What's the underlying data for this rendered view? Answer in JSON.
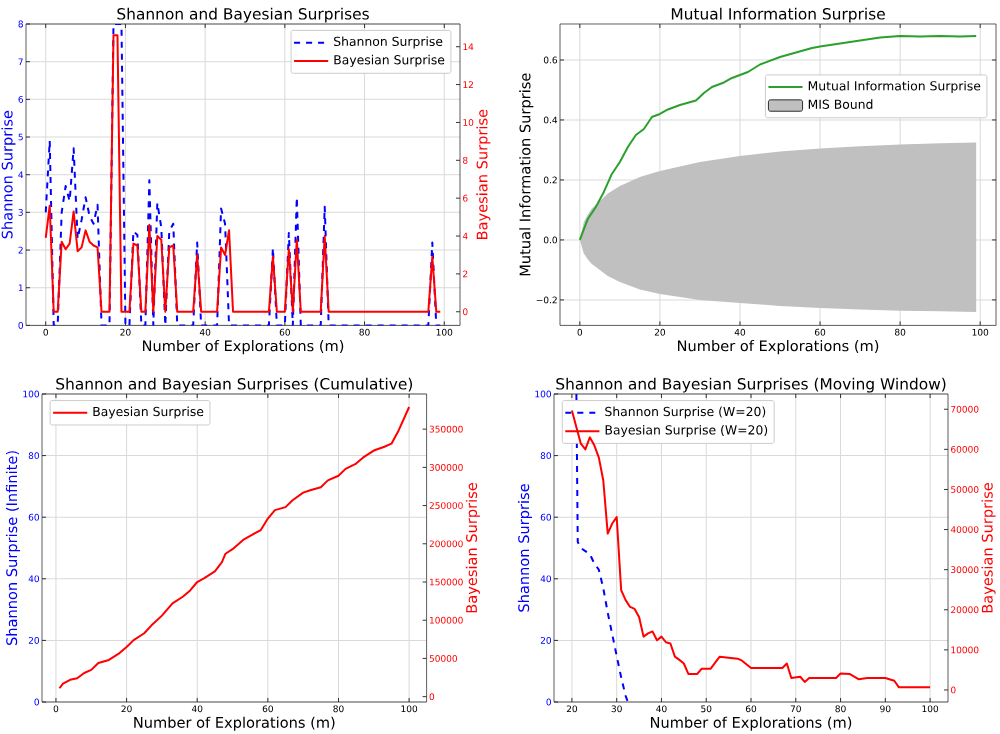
{
  "chart_data": [
    {
      "type": "line",
      "title": "Shannon and Bayesian Surprises",
      "xlabel": "Number of Explorations (m)",
      "ylabel": "Shannon Surprise",
      "y2label": "Bayesian Surprise",
      "x": [
        0,
        1,
        2,
        3,
        4,
        5,
        6,
        7,
        8,
        9,
        10,
        11,
        12,
        13,
        14,
        15,
        16,
        17,
        18,
        19,
        20,
        21,
        22,
        23,
        24,
        25,
        26,
        27,
        28,
        29,
        30,
        31,
        32,
        33,
        34,
        35,
        36,
        37,
        38,
        39,
        40,
        41,
        42,
        43,
        44,
        45,
        46,
        47,
        48,
        49,
        50,
        51,
        52,
        53,
        54,
        55,
        56,
        57,
        58,
        59,
        60,
        61,
        62,
        63,
        64,
        65,
        66,
        67,
        68,
        69,
        70,
        71,
        72,
        73,
        74,
        75,
        76,
        77,
        78,
        79,
        80,
        81,
        82,
        83,
        84,
        85,
        86,
        87,
        88,
        89,
        90,
        91,
        92,
        93,
        94,
        95,
        96,
        97,
        98,
        99
      ],
      "xlim": [
        -4.95,
        103.95
      ],
      "xticks": [
        0,
        20,
        40,
        60,
        80,
        100
      ],
      "ylim": [
        0,
        8
      ],
      "yticks": [
        0,
        1,
        2,
        3,
        4,
        5,
        6,
        7,
        8
      ],
      "y2lim": [
        -0.72,
        15.2
      ],
      "y2ticks": [
        0,
        2,
        4,
        6,
        8,
        10,
        12,
        14
      ],
      "grid": true,
      "legend": "top right",
      "series": [
        {
          "name": "Shannon Surprise",
          "color": "#0000ff",
          "line_style": "dashed",
          "axis": "y",
          "values": [
            3.0,
            4.9,
            0,
            0,
            3.0,
            3.7,
            3.3,
            4.7,
            2.3,
            2.8,
            3.4,
            2.9,
            2.7,
            3.2,
            0,
            0,
            0,
            8,
            8,
            8,
            0,
            0,
            2.5,
            2.4,
            0,
            0,
            3.85,
            0,
            3.25,
            2.6,
            0,
            2.5,
            2.7,
            0,
            0,
            0,
            0,
            0,
            2.2,
            0,
            0,
            0,
            0,
            0,
            3.1,
            2.7,
            0,
            0,
            0,
            0,
            0,
            0,
            0,
            0,
            0,
            0,
            0,
            2.05,
            0,
            0,
            0,
            2.45,
            0,
            3.4,
            0,
            0,
            0,
            0,
            0,
            0,
            3.15,
            0,
            0,
            0,
            0,
            0,
            0,
            0,
            0,
            0,
            0,
            0,
            0,
            0,
            0,
            0,
            0,
            0,
            0,
            0,
            0,
            0,
            0,
            0,
            0,
            0,
            0,
            2.2,
            0,
            0
          ]
        },
        {
          "name": "Bayesian Surprise",
          "color": "#ff0000",
          "line_style": "solid",
          "axis": "y2",
          "values": [
            3.9,
            5.6,
            0,
            0,
            3.7,
            3.3,
            3.6,
            5.3,
            3.2,
            3.4,
            4.3,
            3.7,
            3.5,
            3.4,
            0,
            0,
            0,
            14.6,
            14.6,
            0,
            0,
            0,
            3.6,
            3.5,
            0,
            0,
            4.6,
            0,
            4.0,
            3.8,
            0,
            3.4,
            3.5,
            0,
            0,
            0,
            0,
            0,
            3.0,
            0,
            0,
            0,
            0,
            0,
            3.4,
            3.0,
            4.3,
            0,
            0,
            0,
            0,
            0,
            0,
            0,
            0,
            0,
            0,
            2.9,
            0,
            0,
            0,
            3.3,
            0,
            3.8,
            0,
            0,
            0,
            0,
            0,
            0,
            4.0,
            0,
            0,
            0,
            0,
            0,
            0,
            0,
            0,
            0,
            0,
            0,
            0,
            0,
            0,
            0,
            0,
            0,
            0,
            0,
            0,
            0,
            0,
            0,
            0,
            0,
            0,
            2.9,
            0,
            0
          ]
        }
      ]
    },
    {
      "type": "line",
      "title": "Mutual Information Surprise",
      "xlabel": "Number of Explorations (m)",
      "ylabel": "Mutual Information Surprise",
      "xlim": [
        -4.95,
        103.95
      ],
      "xticks": [
        0,
        20,
        40,
        60,
        80,
        100
      ],
      "ylim": [
        -0.285,
        0.72
      ],
      "yticks": [
        {
          "value": -0.2,
          "label": "−0.2"
        },
        {
          "value": 0,
          "label": "0.0"
        },
        0.2,
        0.4,
        0.6
      ],
      "grid": true,
      "legend": "right",
      "series": [
        {
          "name": "Mutual Information Surprise",
          "color": "#2ca02c",
          "line_style": "solid",
          "x": [
            0,
            2,
            4,
            6,
            8,
            10,
            12,
            14,
            16,
            18,
            20,
            22,
            25,
            29,
            31,
            33,
            36,
            38,
            42,
            45,
            50,
            54,
            58,
            60,
            65,
            70,
            75,
            80,
            85,
            90,
            95,
            99
          ],
          "values": [
            0,
            0.07,
            0.11,
            0.16,
            0.22,
            0.26,
            0.31,
            0.35,
            0.37,
            0.41,
            0.42,
            0.435,
            0.45,
            0.465,
            0.49,
            0.51,
            0.525,
            0.54,
            0.56,
            0.585,
            0.61,
            0.625,
            0.64,
            0.645,
            0.655,
            0.665,
            0.675,
            0.68,
            0.678,
            0.68,
            0.678,
            0.68
          ]
        },
        {
          "name": "MIS Bound",
          "type": "area",
          "color": "#c0c0c0",
          "x": [
            0,
            1,
            2,
            3,
            5,
            7,
            10,
            15,
            20,
            30,
            40,
            50,
            60,
            70,
            80,
            90,
            99
          ],
          "values": [
            0,
            0.06,
            0.085,
            0.105,
            0.13,
            0.155,
            0.18,
            0.21,
            0.23,
            0.26,
            0.28,
            0.295,
            0.305,
            0.312,
            0.318,
            0.322,
            0.325
          ]
        },
        {
          "type": "area",
          "color": "#c0c0c0",
          "x": [
            0,
            1,
            2,
            3,
            5,
            7,
            10,
            15,
            20,
            30,
            40,
            50,
            60,
            70,
            80,
            90,
            99
          ],
          "values": [
            0,
            -0.045,
            -0.065,
            -0.08,
            -0.1,
            -0.12,
            -0.14,
            -0.165,
            -0.18,
            -0.2,
            -0.21,
            -0.22,
            -0.227,
            -0.232,
            -0.236,
            -0.238,
            -0.24
          ]
        }
      ]
    },
    {
      "type": "line",
      "title": "Shannon and Bayesian Surprises (Cumulative)",
      "xlabel": "Number of Explorations (m)",
      "ylabel": "Shannon Surprise (Infinite)",
      "y2label": "Bayesian Surprise",
      "xlim": [
        -3.95,
        104.95
      ],
      "xticks": [
        0,
        20,
        40,
        60,
        80,
        100
      ],
      "ylim": [
        0,
        100
      ],
      "yticks": [
        0,
        20,
        40,
        60,
        80,
        100
      ],
      "y2lim": [
        -7000,
        396000
      ],
      "y2ticks": [
        0,
        50000,
        100000,
        150000,
        200000,
        250000,
        300000,
        350000
      ],
      "grid": true,
      "legend": "top left",
      "series": [
        {
          "name": "Bayesian Surprise",
          "color": "#ff0000",
          "line_style": "solid",
          "axis": "y2",
          "x": [
            1,
            2,
            4,
            6,
            8,
            10,
            12,
            15,
            18,
            20,
            22,
            25,
            27,
            30,
            33,
            36,
            38,
            40,
            42,
            45,
            47,
            48,
            50,
            53,
            56,
            58,
            60,
            62,
            65,
            67,
            70,
            72,
            75,
            77,
            80,
            82,
            85,
            87,
            90,
            93,
            95,
            97,
            100
          ],
          "values": [
            11000,
            17000,
            22000,
            24000,
            31000,
            35000,
            44000,
            48000,
            57000,
            65000,
            74000,
            83000,
            93000,
            106000,
            122000,
            131000,
            139000,
            150000,
            155000,
            164000,
            176000,
            187000,
            193000,
            205000,
            213000,
            218000,
            233000,
            244000,
            248000,
            257000,
            267000,
            270000,
            274000,
            283000,
            289000,
            298000,
            305000,
            313000,
            322000,
            327000,
            331000,
            348000,
            379000
          ]
        }
      ]
    },
    {
      "type": "line",
      "title": "Shannon and Bayesian Surprises (Moving Window)",
      "xlabel": "Number of Explorations (m)",
      "ylabel": "Shannon Surprise",
      "y2label": "Bayesian Surprise",
      "xlim": [
        16,
        104
      ],
      "xticks": [
        20,
        30,
        40,
        50,
        60,
        70,
        80,
        90,
        100
      ],
      "ylim": [
        0,
        100
      ],
      "yticks": [
        0,
        20,
        40,
        60,
        80,
        100
      ],
      "y2lim": [
        -3000,
        73800
      ],
      "y2ticks": [
        0,
        10000,
        20000,
        30000,
        40000,
        50000,
        60000,
        70000
      ],
      "grid": true,
      "legend": "top left",
      "series": [
        {
          "name": "Shannon Surprise (W=20)",
          "color": "#0000ff",
          "line_style": "dashed",
          "axis": "y",
          "x": [
            21,
            21.3,
            22,
            23,
            24,
            25,
            26,
            27,
            28,
            29,
            30,
            31,
            32,
            32.5
          ],
          "values": [
            100,
            52,
            50,
            49,
            48,
            45,
            43,
            37,
            29,
            22,
            15,
            8,
            2,
            0
          ]
        },
        {
          "name": "Bayesian Surprise (W=20)",
          "color": "#ff0000",
          "line_style": "solid",
          "axis": "y2",
          "x": [
            20,
            21,
            22,
            23,
            24,
            25,
            26,
            27,
            28,
            29,
            30,
            31,
            32,
            33,
            34,
            35,
            36,
            37,
            38,
            39,
            40,
            41,
            42,
            43,
            44,
            45,
            46,
            48,
            49,
            51,
            53,
            57,
            58,
            60,
            67,
            68,
            69,
            71,
            72,
            73,
            79,
            80,
            82,
            84,
            86,
            90,
            92,
            93,
            100
          ],
          "values": [
            69700,
            65500,
            61400,
            60000,
            63000,
            61000,
            58000,
            52300,
            39000,
            41500,
            43100,
            24900,
            22400,
            20700,
            20200,
            18200,
            13300,
            14100,
            14600,
            12400,
            13300,
            11900,
            11600,
            8300,
            7500,
            6600,
            4000,
            4000,
            5300,
            5300,
            8300,
            7800,
            7300,
            5500,
            5500,
            6600,
            3000,
            3300,
            2000,
            3000,
            3000,
            4100,
            4000,
            2700,
            3000,
            3000,
            2300,
            700,
            700
          ]
        }
      ]
    }
  ]
}
